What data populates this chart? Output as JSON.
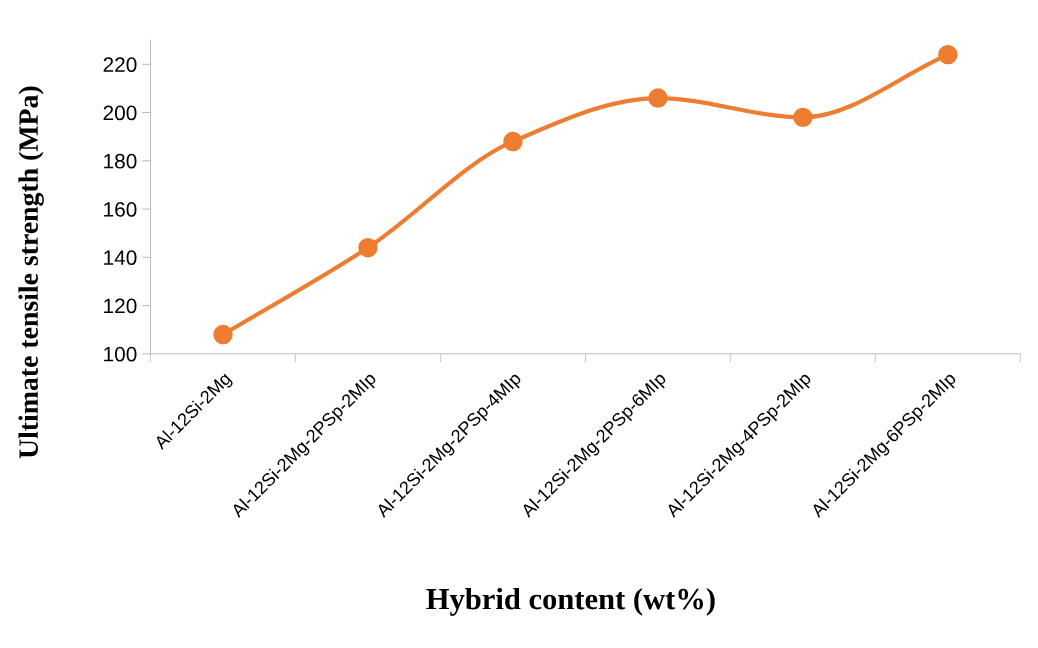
{
  "chart_data": {
    "type": "line",
    "xlabel": "Hybrid content (wt%)",
    "ylabel": "Ultimate tensile strength (MPa)",
    "categories": [
      "Al-12Si-2Mg",
      "Al-12Si-2Mg-2PSp-2MIp",
      "Al-12Si-2Mg-2PSp-4MIp",
      "Al-12Si-2Mg-2PSp-6MIp",
      "Al-12Si-2Mg-4PSp-2MIp",
      "Al-12Si-2Mg-6PSp-2MIp"
    ],
    "series": [
      {
        "color": "#ed7d31",
        "values": [
          108,
          144,
          188,
          206,
          198,
          224
        ]
      }
    ],
    "ylim": [
      100,
      230
    ],
    "yticks": [
      100,
      120,
      140,
      160,
      180,
      200,
      220
    ],
    "grid": false,
    "legend": false,
    "marker": "circle",
    "line_style": "solid"
  }
}
